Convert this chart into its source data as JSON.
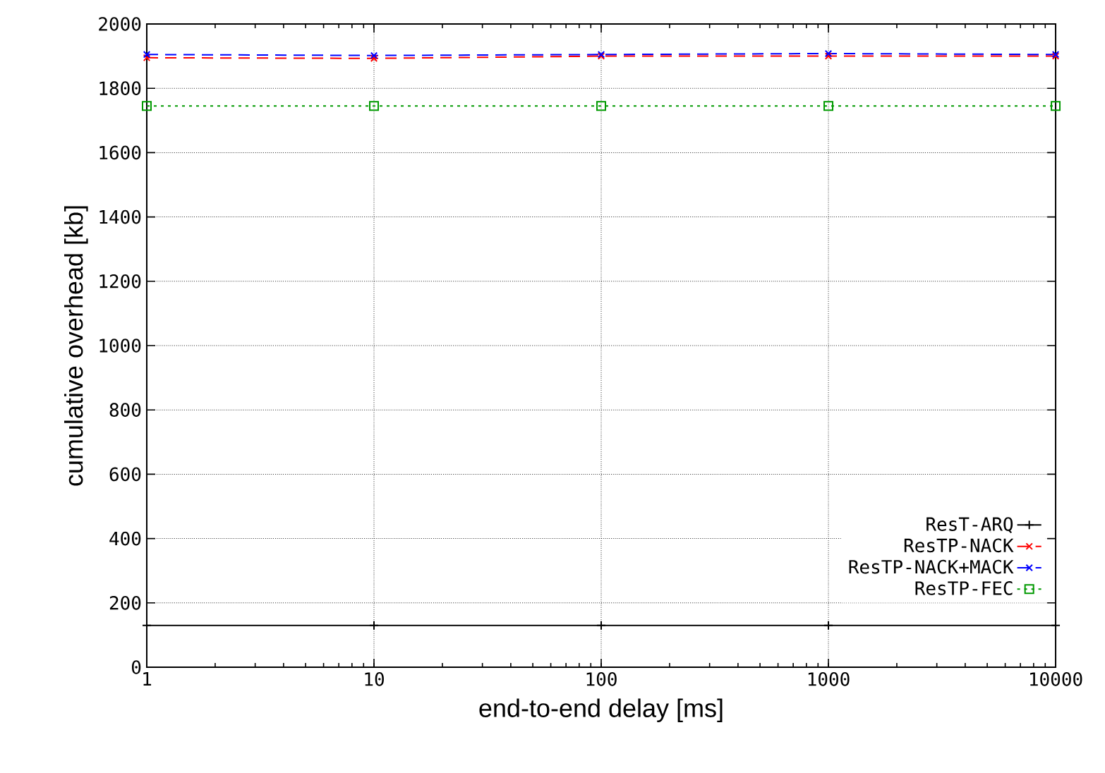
{
  "chart_data": {
    "type": "line",
    "xlabel": "end-to-end delay [ms]",
    "ylabel": "cumulative overhead [kb]",
    "x": [
      1,
      10,
      100,
      1000,
      10000
    ],
    "log": "x",
    "series": [
      {
        "name": "ResT-ARQ",
        "color": "#000000",
        "marker": "cross",
        "line_style": "solid",
        "values": [
          130,
          130,
          130,
          130,
          130
        ]
      },
      {
        "name": "ResTP-NACK",
        "color": "#ff0000",
        "marker": "cross",
        "line_style": "dashed",
        "values": [
          1895,
          1893,
          1900,
          1900,
          1900
        ]
      },
      {
        "name": "ResTP-NACK+MACK",
        "color": "#0000ff",
        "marker": "cross",
        "line_style": "dashed",
        "values": [
          1905,
          1902,
          1905,
          1908,
          1905
        ]
      },
      {
        "name": "ResTP-FEC",
        "color": "#009900",
        "marker": "square",
        "line_style": "dotted",
        "values": [
          1745,
          1745,
          1745,
          1745,
          1745
        ]
      }
    ],
    "xlim": [
      1,
      10000
    ],
    "xticks": [
      1,
      10,
      100,
      1000,
      10000
    ],
    "ylim": [
      0,
      2000
    ],
    "yticks": [
      0,
      200,
      400,
      600,
      800,
      1000,
      1200,
      1400,
      1600,
      1800,
      2000
    ],
    "grid": true,
    "legend": "bottom right"
  }
}
